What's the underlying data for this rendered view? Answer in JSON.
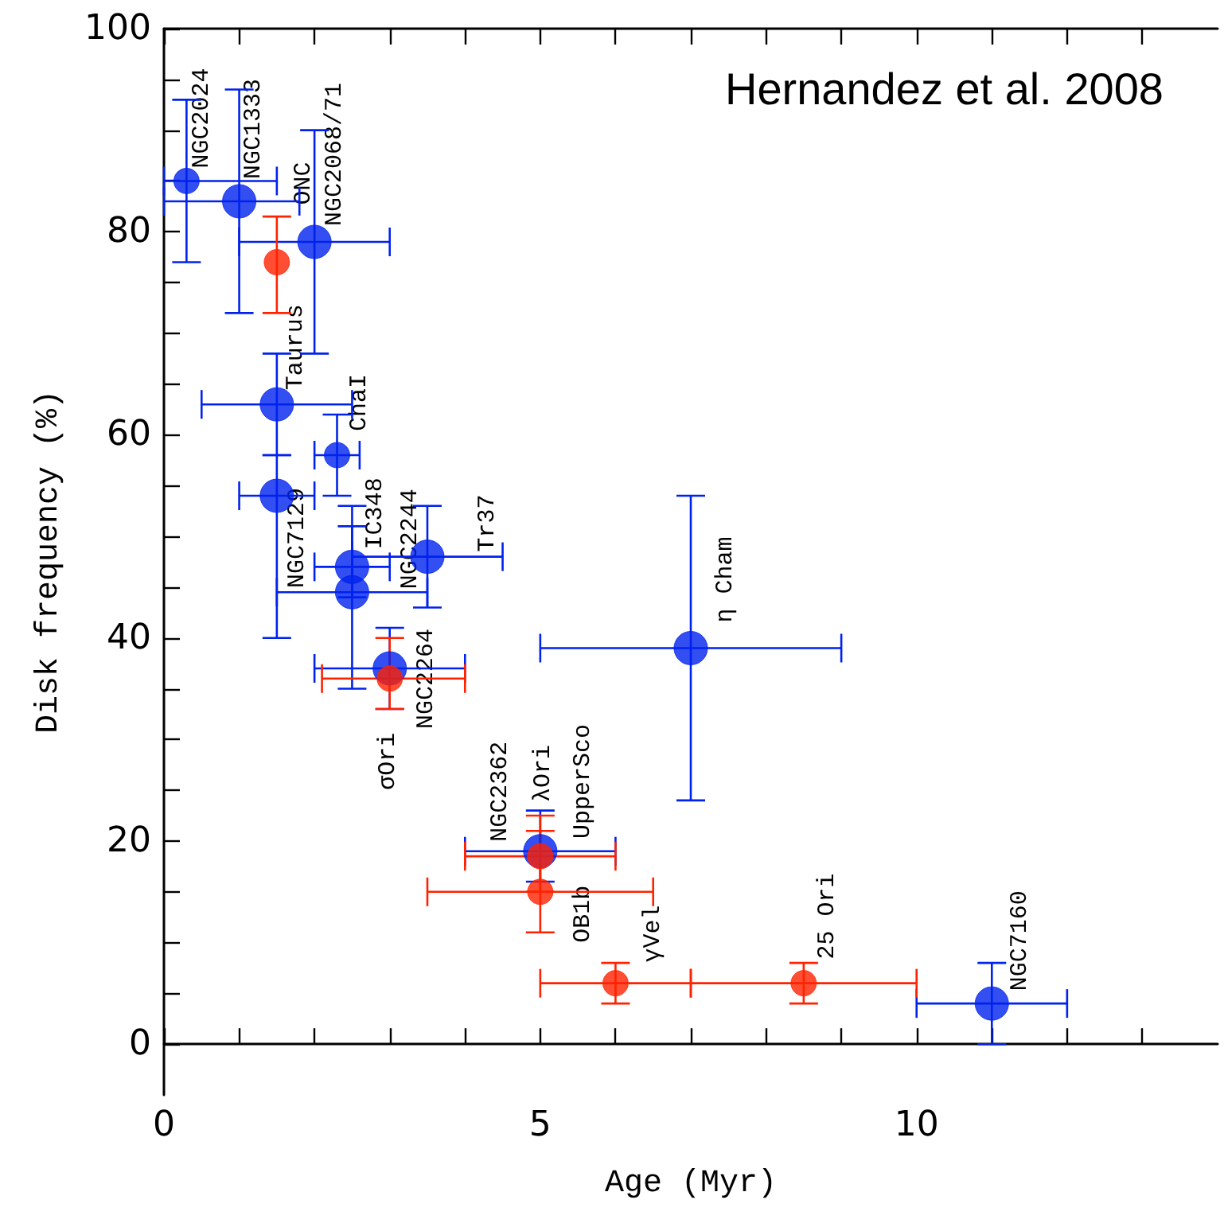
{
  "chart_data": {
    "type": "scatter",
    "xlabel": "Age (Myr)",
    "ylabel": "Disk frequency (%)",
    "xlim": [
      0,
      14
    ],
    "xticks": [
      0,
      {
        "value": 1,
        "label": null
      },
      {
        "value": 2,
        "label": null
      },
      {
        "value": 3,
        "label": null
      },
      {
        "value": 4,
        "label": null
      },
      5,
      {
        "value": 6,
        "label": null
      },
      {
        "value": 7,
        "label": null
      },
      {
        "value": 8,
        "label": null
      },
      {
        "value": 9,
        "label": null
      },
      10,
      {
        "value": 11,
        "label": null
      },
      {
        "value": 12,
        "label": null
      },
      {
        "value": 13,
        "label": null
      }
    ],
    "ylim": [
      -5,
      100
    ],
    "yticks": [
      0,
      {
        "value": 5,
        "label": null
      },
      {
        "value": 10,
        "label": null
      },
      {
        "value": 15,
        "label": null
      },
      20,
      {
        "value": 25,
        "label": null
      },
      {
        "value": 30,
        "label": null
      },
      {
        "value": 35,
        "label": null
      },
      40,
      {
        "value": 45,
        "label": null
      },
      {
        "value": 50,
        "label": null
      },
      {
        "value": 55,
        "label": null
      },
      60,
      {
        "value": 65,
        "label": null
      },
      {
        "value": 70,
        "label": null
      },
      {
        "value": 75,
        "label": null
      },
      80,
      {
        "value": 85,
        "label": null
      },
      {
        "value": 90,
        "label": null
      },
      {
        "value": 95,
        "label": null
      },
      100
    ],
    "marker": "circle",
    "series": [
      {
        "color": "#0022ee",
        "x": [
          1,
          2,
          1.5,
          1.5,
          2.5,
          2.5,
          3.5,
          3,
          7,
          5,
          11
        ],
        "values": [
          83,
          79,
          63,
          54,
          47,
          44.5,
          48,
          37,
          39,
          19,
          4
        ],
        "errors": [
          [
            72,
            94
          ],
          [
            68,
            90
          ],
          [
            58,
            68
          ],
          [
            40,
            58
          ],
          [
            44,
            51
          ],
          [
            35,
            53
          ],
          [
            43,
            53
          ],
          [
            33,
            41
          ],
          [
            24,
            54
          ],
          [
            16,
            23
          ],
          [
            0,
            8
          ]
        ],
        "xerrors": [
          [
            0,
            1.8
          ],
          [
            1,
            3
          ],
          [
            0.5,
            2.5
          ],
          [
            1,
            2
          ],
          [
            2,
            3
          ],
          [
            1.5,
            3.5
          ],
          [
            2.5,
            4.5
          ],
          [
            2,
            4
          ],
          [
            5,
            9
          ],
          [
            4,
            6
          ],
          [
            10,
            12
          ]
        ]
      },
      {
        "color": "#ff2200",
        "x": [
          1.5,
          3,
          5,
          5,
          6,
          8.5
        ],
        "values": [
          77,
          36,
          18.5,
          15,
          6,
          6
        ],
        "errors": [
          [
            72,
            81.5
          ],
          [
            33,
            40
          ],
          [
            15,
            22.5
          ],
          [
            11,
            21
          ],
          [
            4,
            8
          ],
          [
            4,
            8
          ]
        ],
        "xerrors": [
          null,
          [
            2.1,
            4
          ],
          [
            4,
            6
          ],
          [
            3.5,
            6.5
          ],
          [
            5,
            7
          ],
          [
            7,
            10
          ]
        ]
      },
      {
        "color": "#0022ee",
        "x": [
          0.3,
          2.3
        ],
        "values": [
          85,
          58
        ],
        "errors": [
          [
            77,
            93
          ],
          [
            54,
            62
          ]
        ],
        "xerrors": [
          [
            0,
            1.5
          ],
          [
            2,
            2.6
          ]
        ]
      }
    ],
    "annotations": [
      "Hernandez et al. 2008",
      {
        "text": "NGC2024",
        "x": 0.3,
        "y": 85
      },
      {
        "text": "NGC1333",
        "x": 1,
        "y": 83
      },
      {
        "text": "ONC",
        "x": 1.5,
        "y": 77
      },
      {
        "text": "NGC2068/71",
        "x": 2,
        "y": 79
      },
      {
        "text": "Taurus",
        "x": 1.5,
        "y": 63
      },
      {
        "text": "ChaI",
        "x": 2.3,
        "y": 58
      },
      {
        "text": "NGC7129",
        "x": 1.5,
        "y": 54
      },
      {
        "text": "IC348",
        "x": 2.5,
        "y": 47
      },
      {
        "text": "NGC2244",
        "x": 2.5,
        "y": 44.5
      },
      {
        "text": "Tr37",
        "x": 3.5,
        "y": 48
      },
      {
        "text": "NGC2264",
        "x": 3,
        "y": 37
      },
      {
        "text": "σOri",
        "x": 3,
        "y": 36
      },
      {
        "text": "η Cham",
        "x": 7,
        "y": 39
      },
      {
        "text": "NGC2362",
        "x": 5,
        "y": 19
      },
      {
        "text": "λOri",
        "x": 5,
        "y": 18.5
      },
      {
        "text": "UpperSco",
        "x": 5,
        "y": 18.5
      },
      {
        "text": "OB1b",
        "x": 5,
        "y": 15
      },
      {
        "text": "γVel",
        "x": 6,
        "y": 6
      },
      {
        "text": "25 Ori",
        "x": 8.5,
        "y": 6
      },
      {
        "text": "NGC7160",
        "x": 11,
        "y": 4
      }
    ]
  }
}
